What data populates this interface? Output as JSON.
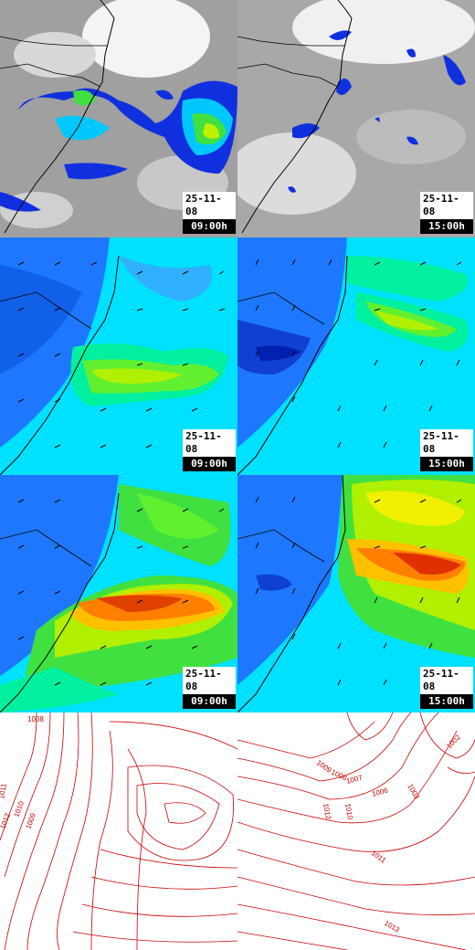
{
  "panels": [
    {
      "date": "25-11-08",
      "time": "09:00h"
    },
    {
      "date": "25-11-08",
      "time": "15:00h"
    },
    {
      "date": "25-11-08",
      "time": "09:00h"
    },
    {
      "date": "25-11-08",
      "time": "15:00h"
    },
    {
      "date": "25-11-08",
      "time": "09:00h"
    },
    {
      "date": "25-11-08",
      "time": "15:00h"
    }
  ],
  "isobars": {
    "left": [
      "1008",
      "1011",
      "1010",
      "1012",
      "1009"
    ],
    "right": [
      "1002",
      "1009",
      "1008",
      "1007",
      "1006",
      "1003",
      "1012",
      "1010",
      "1011",
      "1013"
    ]
  },
  "colors": {
    "cloud_gray": "#a8a8a8",
    "cloud_white": "#f2f2f2",
    "precip_blue": "#1030e0",
    "field_cyan": "#00e8ff",
    "field_green": "#40e040",
    "field_yellow": "#f0f000",
    "field_orange": "#ff8000",
    "field_red": "#e03000",
    "isobar_red": "#cc0000"
  }
}
